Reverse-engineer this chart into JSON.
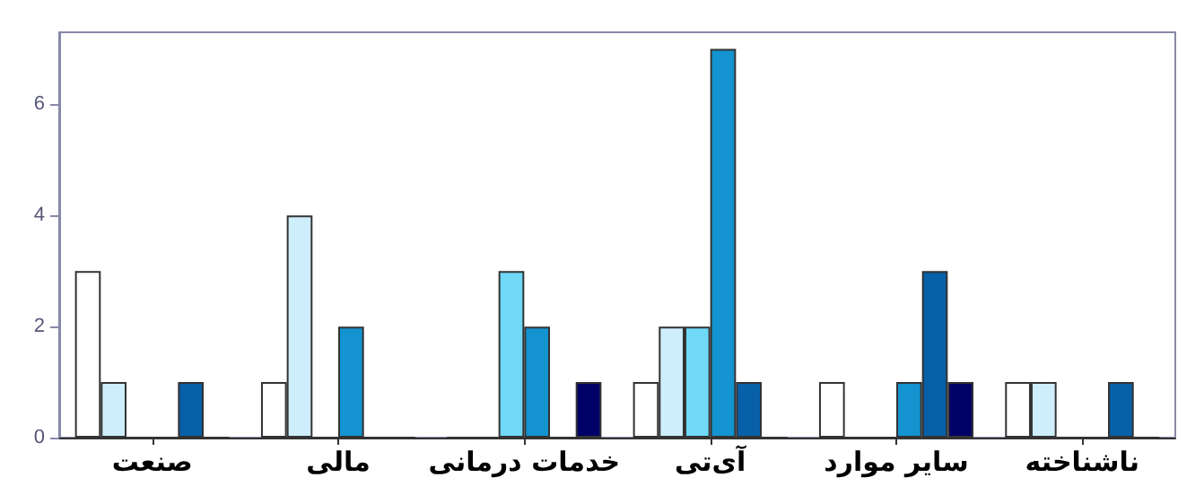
{
  "chart_data": {
    "type": "bar",
    "categories": [
      "صنعت",
      "مالی",
      "خدمات درمانی",
      "آی‌تی",
      "سایر موارد",
      "ناشناخته"
    ],
    "series": [
      {
        "color": "#ffffff",
        "values": [
          3,
          1,
          0,
          1,
          1,
          1
        ]
      },
      {
        "color": "#cdeefa",
        "values": [
          1,
          4,
          0,
          2,
          0,
          1
        ]
      },
      {
        "color": "#6fd9f7",
        "values": [
          0,
          0,
          3,
          2,
          0,
          0
        ]
      },
      {
        "color": "#1393cf",
        "values": [
          0,
          2,
          2,
          7,
          1,
          0
        ]
      },
      {
        "color": "#0760a8",
        "values": [
          1,
          0,
          0,
          1,
          3,
          1
        ]
      },
      {
        "color": "#000066",
        "values": [
          0,
          0,
          1,
          0,
          1,
          0
        ]
      }
    ],
    "ylim": [
      0,
      7.3
    ],
    "yticks": [
      0,
      2,
      4,
      6
    ],
    "grid": false
  }
}
